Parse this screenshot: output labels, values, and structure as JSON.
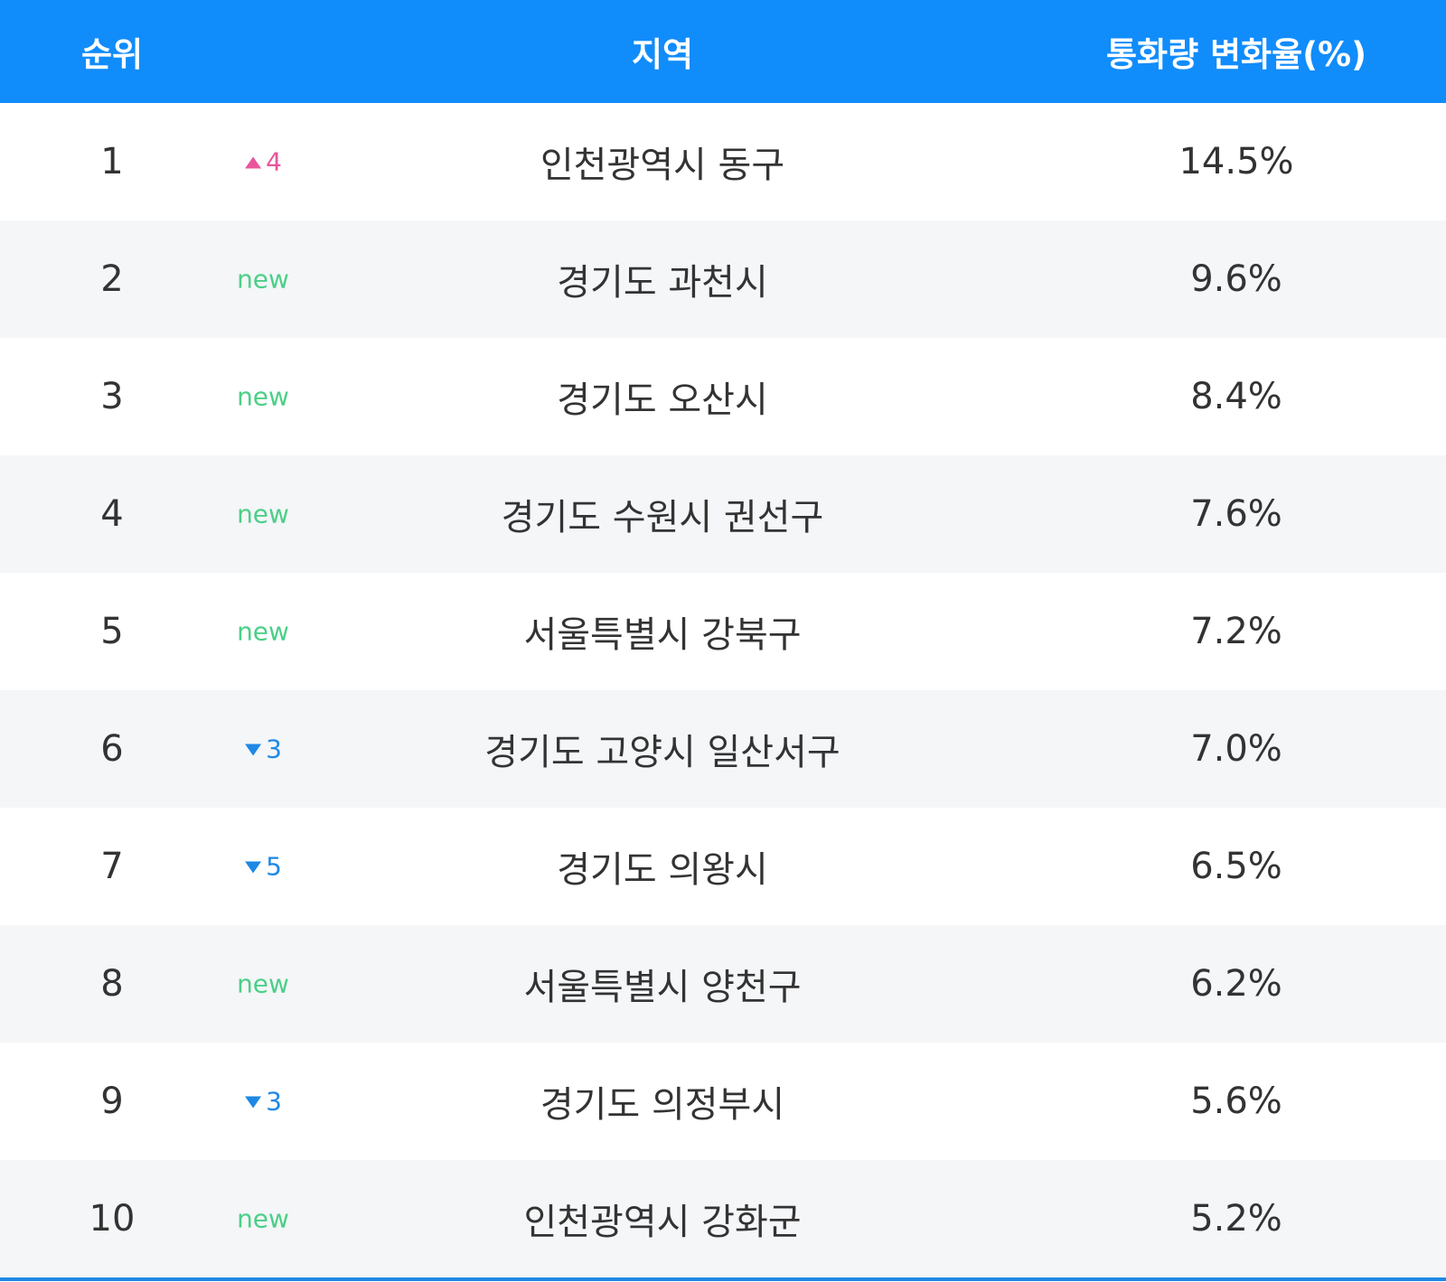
{
  "table": {
    "header": [
      "순위",
      "지역",
      "통화량 변화율(%)"
    ],
    "rows": [
      {
        "rank": "1",
        "change": {
          "kind": "up",
          "text": "4"
        },
        "region": "인천광역시 동구",
        "rate": "14.5%"
      },
      {
        "rank": "2",
        "change": {
          "kind": "new",
          "text": "new"
        },
        "region": "경기도 과천시",
        "rate": "9.6%"
      },
      {
        "rank": "3",
        "change": {
          "kind": "new",
          "text": "new"
        },
        "region": "경기도 오산시",
        "rate": "8.4%"
      },
      {
        "rank": "4",
        "change": {
          "kind": "new",
          "text": "new"
        },
        "region": "경기도 수원시 권선구",
        "rate": "7.6%"
      },
      {
        "rank": "5",
        "change": {
          "kind": "new",
          "text": "new"
        },
        "region": "서울특별시 강북구",
        "rate": "7.2%"
      },
      {
        "rank": "6",
        "change": {
          "kind": "down",
          "text": "3"
        },
        "region": "경기도 고양시 일산서구",
        "rate": "7.0%"
      },
      {
        "rank": "7",
        "change": {
          "kind": "down",
          "text": "5"
        },
        "region": "경기도 의왕시",
        "rate": "6.5%"
      },
      {
        "rank": "8",
        "change": {
          "kind": "new",
          "text": "new"
        },
        "region": "서울특별시 양천구",
        "rate": "6.2%"
      },
      {
        "rank": "9",
        "change": {
          "kind": "down",
          "text": "3"
        },
        "region": "경기도 의정부시",
        "rate": "5.6%"
      },
      {
        "rank": "10",
        "change": {
          "kind": "new",
          "text": "new"
        },
        "region": "인천광역시 강화군",
        "rate": "5.2%"
      }
    ]
  }
}
